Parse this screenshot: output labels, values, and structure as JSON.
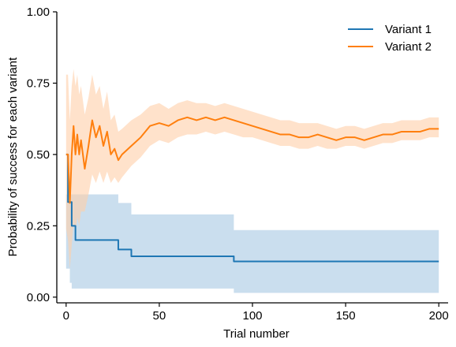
{
  "chart_data": {
    "type": "line",
    "xlabel": "Trial number",
    "ylabel": "Probability of success for each variant",
    "xlim": [
      -5,
      205
    ],
    "ylim": [
      -0.02,
      1.0
    ],
    "xticks": [
      0,
      50,
      100,
      150,
      200
    ],
    "xtick_labels": [
      "0",
      "50",
      "100",
      "150",
      "200"
    ],
    "yticks": [
      0.0,
      0.25,
      0.5,
      0.75,
      1.0
    ],
    "ytick_labels": [
      "0.00",
      "0.25",
      "0.50",
      "0.75",
      "1.00"
    ],
    "legend_position": "top-right",
    "grid": false,
    "series": [
      {
        "name": "Variant 1",
        "color": "#1f77b4",
        "band_color": "#a6c8e3",
        "line": "step",
        "x": [
          0,
          1,
          2,
          3,
          4,
          5,
          20,
          28,
          35,
          90,
          200
        ],
        "y": [
          0.5,
          0.333,
          0.333,
          0.25,
          0.25,
          0.2,
          0.2,
          0.167,
          0.143,
          0.125,
          0.125
        ],
        "lower": [
          0.1,
          0.1,
          0.05,
          0.03,
          0.03,
          0.03,
          0.03,
          0.03,
          0.03,
          0.015,
          0.015
        ],
        "upper": [
          0.36,
          0.36,
          0.36,
          0.36,
          0.36,
          0.36,
          0.36,
          0.33,
          0.29,
          0.235,
          0.235
        ]
      },
      {
        "name": "Variant 2",
        "color": "#ff7f0e",
        "band_color": "#ffcfa8",
        "line": "linear",
        "x": [
          0,
          1,
          2,
          3,
          4,
          5,
          6,
          7,
          8,
          10,
          12,
          14,
          16,
          18,
          20,
          22,
          24,
          26,
          28,
          30,
          35,
          40,
          45,
          50,
          55,
          60,
          65,
          70,
          75,
          80,
          85,
          90,
          95,
          100,
          105,
          110,
          115,
          120,
          125,
          130,
          135,
          140,
          145,
          150,
          155,
          160,
          165,
          170,
          175,
          180,
          185,
          190,
          195,
          200
        ],
        "y": [
          0.5,
          0.5,
          0.33,
          0.5,
          0.6,
          0.5,
          0.57,
          0.5,
          0.55,
          0.45,
          0.53,
          0.62,
          0.56,
          0.6,
          0.53,
          0.58,
          0.5,
          0.52,
          0.48,
          0.5,
          0.53,
          0.56,
          0.6,
          0.61,
          0.6,
          0.62,
          0.63,
          0.62,
          0.63,
          0.62,
          0.63,
          0.62,
          0.61,
          0.6,
          0.59,
          0.58,
          0.57,
          0.57,
          0.56,
          0.56,
          0.57,
          0.56,
          0.55,
          0.56,
          0.56,
          0.55,
          0.56,
          0.57,
          0.57,
          0.58,
          0.58,
          0.58,
          0.59,
          0.59
        ],
        "lower": [
          0.24,
          0.2,
          0.1,
          0.18,
          0.26,
          0.22,
          0.28,
          0.25,
          0.3,
          0.3,
          0.36,
          0.43,
          0.4,
          0.44,
          0.4,
          0.44,
          0.4,
          0.42,
          0.4,
          0.42,
          0.46,
          0.49,
          0.53,
          0.55,
          0.54,
          0.56,
          0.57,
          0.57,
          0.58,
          0.57,
          0.58,
          0.57,
          0.56,
          0.56,
          0.55,
          0.54,
          0.53,
          0.53,
          0.52,
          0.52,
          0.53,
          0.52,
          0.52,
          0.53,
          0.53,
          0.52,
          0.53,
          0.54,
          0.54,
          0.55,
          0.55,
          0.55,
          0.56,
          0.56
        ],
        "upper": [
          0.78,
          0.78,
          0.62,
          0.74,
          0.8,
          0.74,
          0.78,
          0.71,
          0.74,
          0.64,
          0.7,
          0.78,
          0.71,
          0.74,
          0.66,
          0.72,
          0.62,
          0.64,
          0.58,
          0.59,
          0.62,
          0.64,
          0.67,
          0.68,
          0.66,
          0.68,
          0.69,
          0.68,
          0.68,
          0.67,
          0.68,
          0.67,
          0.66,
          0.65,
          0.64,
          0.63,
          0.62,
          0.62,
          0.61,
          0.61,
          0.61,
          0.6,
          0.59,
          0.6,
          0.6,
          0.59,
          0.6,
          0.61,
          0.61,
          0.62,
          0.62,
          0.62,
          0.63,
          0.63
        ]
      }
    ]
  }
}
